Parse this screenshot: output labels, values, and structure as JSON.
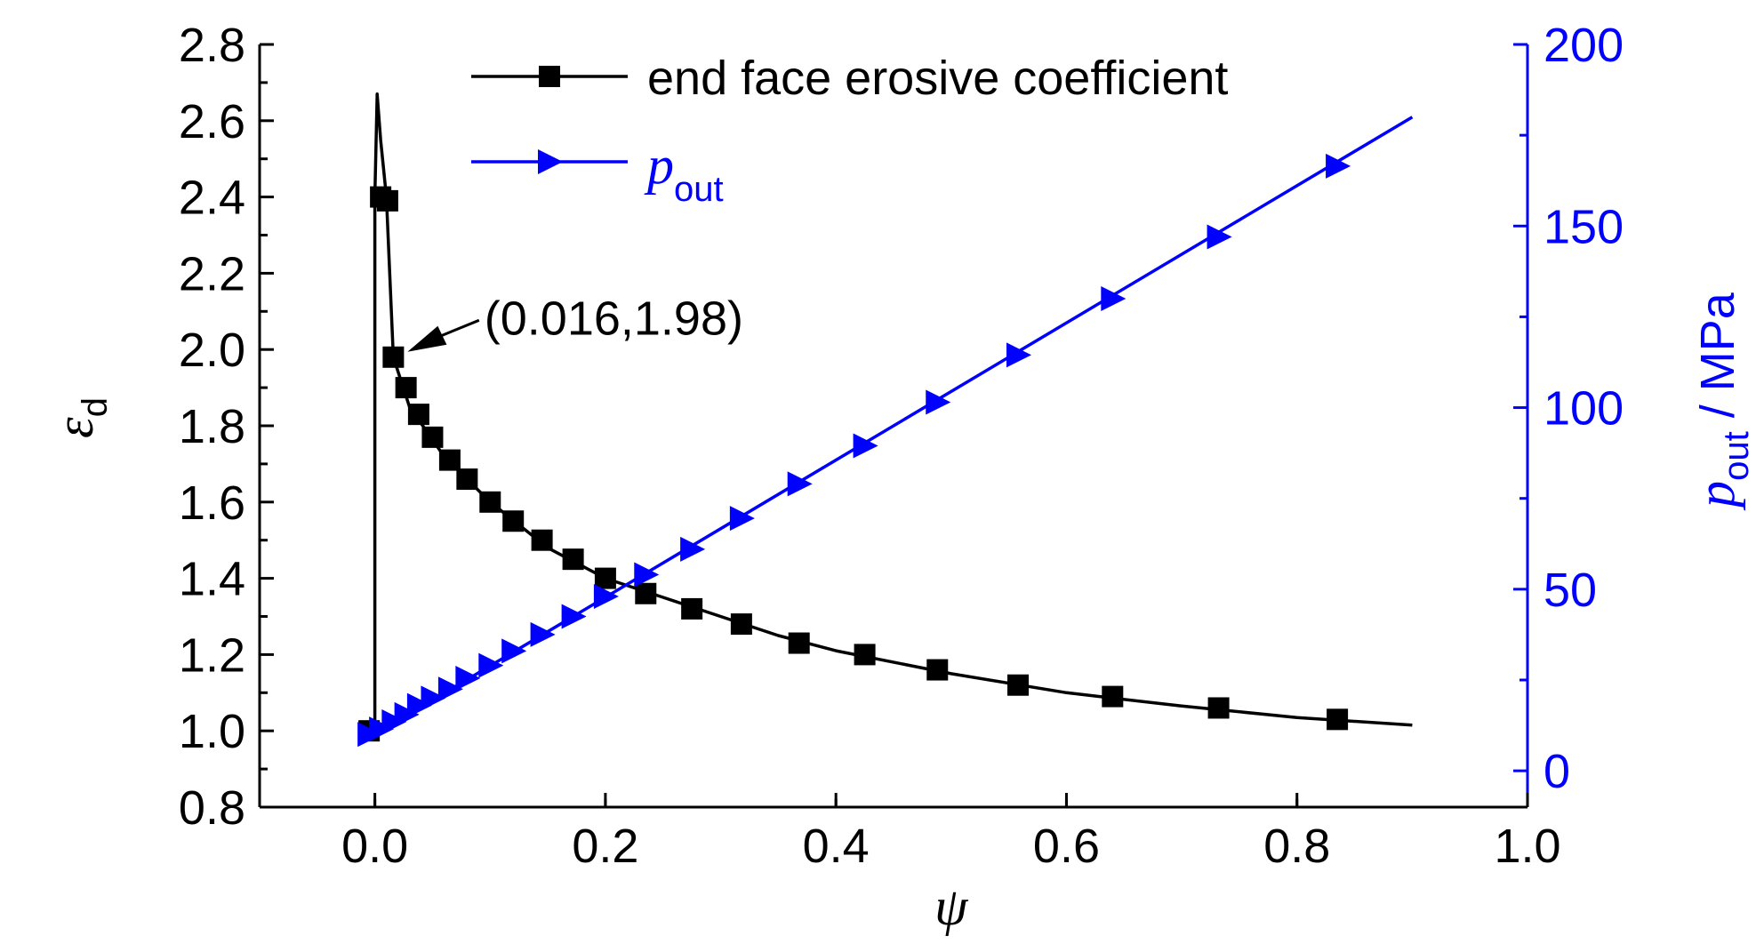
{
  "chart_data": {
    "type": "line",
    "x": {
      "label": "ψ",
      "range": [
        -0.1,
        1.0
      ],
      "ticks": [
        "0.0",
        "0.2",
        "0.4",
        "0.6",
        "0.8",
        "1.0"
      ]
    },
    "y_left": {
      "label": "ε",
      "label_sub": "d",
      "range": [
        0.8,
        2.8
      ],
      "ticks": [
        "0.8",
        "1.0",
        "1.2",
        "1.4",
        "1.6",
        "1.8",
        "2.0",
        "2.2",
        "2.4",
        "2.6",
        "2.8"
      ]
    },
    "y_right": {
      "label": "p",
      "label_sub": "out",
      "label_unit": " / MPa",
      "range": [
        -10,
        200
      ],
      "ticks": [
        "0",
        "50",
        "100",
        "150",
        "200"
      ],
      "color": "#0000ff"
    },
    "series": [
      {
        "name": "end face erosive coefficient",
        "axis": "left",
        "color": "#000000",
        "marker": "square",
        "line": [
          [
            0.0,
            1.0
          ],
          [
            0.0,
            2.4
          ],
          [
            0.002,
            2.67
          ],
          [
            0.005,
            2.55
          ],
          [
            0.01,
            2.4
          ],
          [
            0.016,
            1.98
          ],
          [
            0.03,
            1.85
          ],
          [
            0.06,
            1.72
          ],
          [
            0.1,
            1.6
          ],
          [
            0.15,
            1.48
          ],
          [
            0.2,
            1.4
          ],
          [
            0.25,
            1.35
          ],
          [
            0.3,
            1.3
          ],
          [
            0.35,
            1.25
          ],
          [
            0.4,
            1.21
          ],
          [
            0.5,
            1.15
          ],
          [
            0.6,
            1.1
          ],
          [
            0.7,
            1.065
          ],
          [
            0.8,
            1.035
          ],
          [
            0.9,
            1.015
          ]
        ],
        "markers": [
          [
            -0.005,
            1.0
          ],
          [
            0.005,
            2.4
          ],
          [
            0.011,
            2.39
          ],
          [
            0.016,
            1.98
          ],
          [
            0.027,
            1.9
          ],
          [
            0.038,
            1.83
          ],
          [
            0.05,
            1.77
          ],
          [
            0.065,
            1.71
          ],
          [
            0.08,
            1.66
          ],
          [
            0.1,
            1.6
          ],
          [
            0.12,
            1.55
          ],
          [
            0.145,
            1.5
          ],
          [
            0.172,
            1.45
          ],
          [
            0.2,
            1.4
          ],
          [
            0.235,
            1.36
          ],
          [
            0.275,
            1.32
          ],
          [
            0.318,
            1.28
          ],
          [
            0.368,
            1.23
          ],
          [
            0.425,
            1.2
          ],
          [
            0.488,
            1.16
          ],
          [
            0.558,
            1.12
          ],
          [
            0.64,
            1.09
          ],
          [
            0.732,
            1.06
          ],
          [
            0.835,
            1.03
          ]
        ]
      },
      {
        "name": "p",
        "name_sub": "out",
        "axis": "right",
        "color": "#0000ff",
        "marker": "triangle-right",
        "line": [
          [
            0.0,
            10
          ],
          [
            0.9,
            180
          ]
        ],
        "markers": [
          [
            -0.005,
            10
          ],
          [
            0.005,
            11.5
          ],
          [
            0.016,
            13.5
          ],
          [
            0.027,
            15.5
          ],
          [
            0.038,
            18
          ],
          [
            0.05,
            20
          ],
          [
            0.065,
            22.5
          ],
          [
            0.08,
            25.5
          ],
          [
            0.1,
            29
          ],
          [
            0.12,
            33
          ],
          [
            0.145,
            37.5
          ],
          [
            0.172,
            42.5
          ],
          [
            0.2,
            48
          ],
          [
            0.235,
            54
          ],
          [
            0.275,
            61
          ],
          [
            0.318,
            69.5
          ],
          [
            0.368,
            79
          ],
          [
            0.425,
            89.5
          ],
          [
            0.488,
            101.5
          ],
          [
            0.558,
            114.5
          ],
          [
            0.64,
            130
          ],
          [
            0.732,
            147
          ],
          [
            0.835,
            166.5
          ]
        ]
      }
    ],
    "annotation": {
      "text": "(0.016,1.98)",
      "point": [
        0.016,
        1.98
      ],
      "text_at": [
        0.095,
        2.1
      ]
    },
    "legend": {
      "position": "top-center"
    },
    "grid": false
  }
}
